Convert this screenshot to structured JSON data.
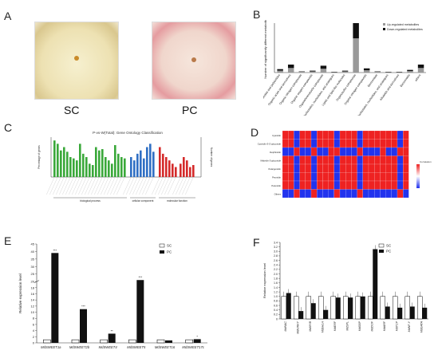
{
  "panels": {
    "A": "A",
    "B": "B",
    "C": "C",
    "D": "D",
    "E": "E",
    "F": "F"
  },
  "photos": {
    "left_label": "SC",
    "right_label": "PC"
  },
  "colors": {
    "green": "#3aa83a",
    "blue": "#2f6fc4",
    "red": "#d42a2a",
    "heat_red": "#ee2222",
    "heat_blue": "#2233ee",
    "bar_black": "#111111"
  },
  "panel_b": {
    "type": "bar",
    "ylabel": "Number of significantly different metabolites",
    "legend": [
      "Up-regulated metabolites",
      "Down-regulated metabolites"
    ],
    "categories": [
      "Phenylpropanoids and polyketides",
      "Organic acids and derivatives",
      "Organic nitrogen compounds",
      "Organic oxygen compounds",
      "Organoheterocyclic compounds",
      "Nucleosides, nucleotides, and analogues",
      "Lipids and lipid-like molecules",
      "Organosulfur compounds",
      "Organic nitrogen compounds",
      "Benzenoids",
      "Nucleosides, nucleotides, and analogues",
      "Alkaloids and derivatives",
      "Benzenoids",
      "others"
    ],
    "series": [
      {
        "name": "Up-regulated metabolites",
        "values": [
          5,
          12,
          2,
          3,
          10,
          1,
          3,
          90,
          6,
          2,
          1,
          1,
          4,
          12
        ]
      },
      {
        "name": "Down-regulated metabolites",
        "values": [
          4,
          9,
          1,
          2,
          8,
          1,
          2,
          40,
          5,
          1,
          1,
          1,
          3,
          9
        ]
      }
    ],
    "ylim": [
      0,
      130
    ]
  },
  "panel_c": {
    "title": "P-vs-W(Total): Gene Ontology Classification",
    "ylabel_left": "Percentage of genes",
    "ylabel_right": "Number of genes",
    "groups": [
      "biological process",
      "cellular component",
      "molecular function"
    ],
    "green": [
      55,
      50,
      40,
      45,
      38,
      30,
      28,
      25,
      50,
      35,
      30,
      20,
      18,
      45,
      40,
      42,
      30,
      25,
      20,
      48,
      35,
      30,
      28
    ],
    "blue": [
      30,
      25,
      35,
      40,
      28,
      45,
      50,
      38
    ],
    "red": [
      45,
      35,
      30,
      25,
      20,
      15
    ],
    "red2": [
      20,
      30,
      25,
      15,
      18
    ]
  },
  "panel_d": {
    "legend_title": "Correlation",
    "rows": [
      "Cyanidin",
      "Cyanidin-3-O-glucoside",
      "Delphinidin",
      "Malvidin-3-glucoside",
      "Pelargonidin",
      "Peonidin",
      "Petunidin",
      "Others"
    ],
    "cols": 22
  },
  "panel_e": {
    "type": "bar",
    "ylabel": "Relative expression level",
    "legend": [
      "SC",
      "PC"
    ],
    "categories": [
      "MdSWEET1a",
      "MdSWEET2b",
      "MdSWEET4",
      "MdSWEET5",
      "MdSWEET16",
      "MdSWEET17c"
    ],
    "series": [
      {
        "name": "SC",
        "values": [
          1,
          1,
          1,
          1,
          1,
          1
        ]
      },
      {
        "name": "PC",
        "values": [
          39,
          11,
          3,
          21,
          0.8,
          1.2
        ]
      }
    ],
    "stars": [
      "***",
      "***",
      "**",
      "***",
      "",
      "*"
    ],
    "yticks": [
      "0",
      "2",
      "4",
      "6",
      "8",
      "10",
      "12",
      "14",
      "16",
      "18",
      "20",
      "25",
      "30",
      "35",
      "40",
      "45"
    ]
  },
  "panel_f": {
    "type": "bar",
    "ylabel": "Relative expression level",
    "legend": [
      "SC",
      "PC"
    ],
    "categories": [
      "MdNAC",
      "MdWRKY",
      "MdMYB",
      "MdbHLH",
      "MdERF",
      "MdSPL",
      "MdSBP",
      "MdDOF",
      "MdARF",
      "MdTCP",
      "MdNF-Y",
      "MdGATA"
    ],
    "series": [
      {
        "name": "SC",
        "values": [
          1.0,
          1.0,
          1.0,
          1.0,
          1.0,
          1.0,
          1.0,
          1.0,
          1.0,
          1.0,
          1.0,
          1.0
        ]
      },
      {
        "name": "PC",
        "values": [
          1.15,
          0.35,
          0.7,
          0.4,
          0.95,
          0.95,
          1.0,
          3.1,
          0.55,
          0.5,
          0.55,
          0.5
        ]
      }
    ],
    "yticks": [
      "0",
      "0.2",
      "0.4",
      "0.6",
      "0.8",
      "1.0",
      "1.2",
      "1.4",
      "1.6",
      "1.8",
      "2.0",
      "2.2",
      "2.4",
      "2.6",
      "2.8",
      "3.0",
      "3.2",
      "3.4"
    ],
    "ylim": [
      0,
      3.4
    ]
  }
}
